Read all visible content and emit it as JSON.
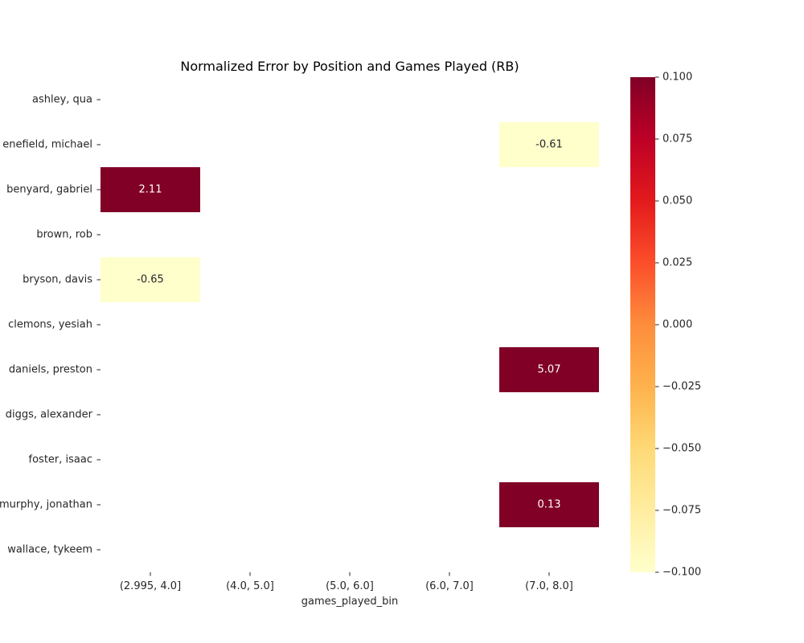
{
  "chart_data": {
    "type": "heatmap",
    "title": "Normalized Error by Position and Games Played (RB)",
    "xlabel": "games_played_bin",
    "ylabel": "",
    "x_categories": [
      "(2.995, 4.0]",
      "(4.0, 5.0]",
      "(5.0, 6.0]",
      "(6.0, 7.0]",
      "(7.0, 8.0]"
    ],
    "y_categories": [
      "ashley, qua",
      "enefield, michael",
      "benyard, gabriel",
      "brown, rob",
      "bryson, davis",
      "clemons, yesiah",
      "daniels, preston",
      "diggs, alexander",
      "foster, isaac",
      "murphy, jonathan",
      "wallace, tykeem"
    ],
    "values": [
      [
        null,
        null,
        null,
        null,
        null
      ],
      [
        null,
        null,
        null,
        null,
        -0.61
      ],
      [
        2.11,
        null,
        null,
        null,
        null
      ],
      [
        null,
        null,
        null,
        null,
        null
      ],
      [
        -0.65,
        null,
        null,
        null,
        null
      ],
      [
        null,
        null,
        null,
        null,
        null
      ],
      [
        null,
        null,
        null,
        null,
        5.07
      ],
      [
        null,
        null,
        null,
        null,
        null
      ],
      [
        null,
        null,
        null,
        null,
        null
      ],
      [
        null,
        null,
        null,
        null,
        0.13
      ],
      [
        null,
        null,
        null,
        null,
        null
      ]
    ],
    "value_labels": [
      [
        null,
        null,
        null,
        null,
        null
      ],
      [
        null,
        null,
        null,
        null,
        "-0.61"
      ],
      [
        "2.11",
        null,
        null,
        null,
        null
      ],
      [
        null,
        null,
        null,
        null,
        null
      ],
      [
        "-0.65",
        null,
        null,
        null,
        null
      ],
      [
        null,
        null,
        null,
        null,
        null
      ],
      [
        null,
        null,
        null,
        null,
        "5.07"
      ],
      [
        null,
        null,
        null,
        null,
        null
      ],
      [
        null,
        null,
        null,
        null,
        null
      ],
      [
        null,
        null,
        null,
        null,
        "0.13"
      ],
      [
        null,
        null,
        null,
        null,
        null
      ]
    ],
    "colorbar": {
      "colormap": "YlOrRd",
      "vmin": -0.1,
      "vmax": 0.1,
      "ticks": [
        0.1,
        0.075,
        0.05,
        0.025,
        0.0,
        -0.025,
        -0.05,
        -0.075,
        -0.1
      ],
      "tick_labels": [
        "0.100",
        "0.075",
        "0.050",
        "0.025",
        "0.000",
        "−0.025",
        "−0.050",
        "−0.075",
        "−0.100"
      ]
    },
    "colormap_stops": [
      "#ffffcc",
      "#ffeda0",
      "#fed976",
      "#feb24c",
      "#fd8d3c",
      "#fc4e2a",
      "#e31a1c",
      "#bd0026",
      "#800026"
    ],
    "grid": false
  }
}
